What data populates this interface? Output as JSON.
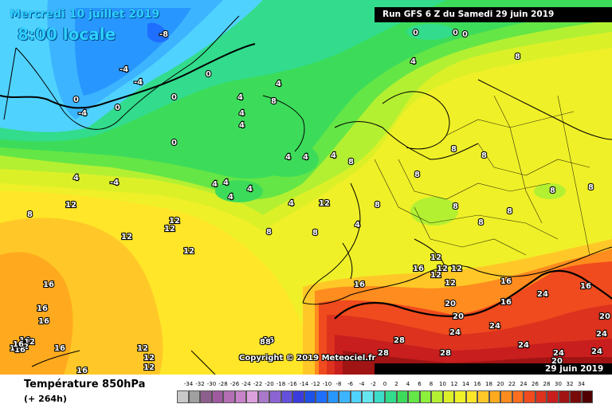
{
  "header": {
    "valid_line1": "Mercredi 10 juillet 2019",
    "valid_line2": "8:00 locale",
    "run": "Run GFS 6 Z du Samedi 29 juin 2019",
    "run_date": "29 juin 2019"
  },
  "copyright": "Copyright © 2019 Meteociel.fr",
  "footer": {
    "parameter": "Température 850hPa",
    "lead_time": "(+ 264h)"
  },
  "legend": {
    "labels": [
      "-34",
      "-32",
      "-30",
      "-28",
      "-26",
      "-24",
      "-22",
      "-20",
      "-18",
      "-16",
      "-14",
      "-12",
      "-10",
      "-8",
      "-6",
      "-4",
      "-2",
      "0",
      "2",
      "4",
      "6",
      "8",
      "10",
      "12",
      "14",
      "16",
      "18",
      "20",
      "22",
      "24",
      "26",
      "28",
      "30",
      "32",
      "34"
    ],
    "colors": [
      "#c8c8c8",
      "#a0a0a0",
      "#8c5f8c",
      "#a05aa0",
      "#b46eb4",
      "#c882c8",
      "#dca0dc",
      "#aa78c8",
      "#8c64d2",
      "#6450dc",
      "#3c3cdc",
      "#1e50e6",
      "#1e6eff",
      "#2896ff",
      "#3cb4ff",
      "#50d2ff",
      "#64e6f0",
      "#3cdcc8",
      "#32dc8c",
      "#3cdc5a",
      "#64e646",
      "#8cf03c",
      "#b4f032",
      "#dcf028",
      "#f0f028",
      "#ffe628",
      "#ffc828",
      "#ffaa1e",
      "#ff8c1e",
      "#ff6e1e",
      "#f04b1e",
      "#dc321e",
      "#c81e1e",
      "#a01414",
      "#780a0a",
      "#500000"
    ]
  },
  "map_labels": [
    {
      "v": "-8"
    },
    {
      "v": "-4"
    },
    {
      "v": "-4"
    },
    {
      "v": "0"
    },
    {
      "v": "0"
    },
    {
      "v": "0"
    },
    {
      "v": "-4"
    },
    {
      "v": "0"
    },
    {
      "v": "0"
    },
    {
      "v": "0"
    },
    {
      "v": "0"
    },
    {
      "v": "0"
    },
    {
      "v": "4"
    },
    {
      "v": "8"
    },
    {
      "v": "4"
    },
    {
      "v": "4"
    },
    {
      "v": "8"
    },
    {
      "v": "4"
    },
    {
      "v": "4"
    },
    {
      "v": "4"
    },
    {
      "v": "4"
    },
    {
      "v": "4"
    },
    {
      "v": "-4"
    },
    {
      "v": "4"
    },
    {
      "v": "4"
    },
    {
      "v": "4"
    },
    {
      "v": "4"
    },
    {
      "v": "4"
    },
    {
      "v": "4"
    },
    {
      "v": "8"
    },
    {
      "v": "8"
    },
    {
      "v": "8"
    },
    {
      "v": "4"
    },
    {
      "v": "8"
    },
    {
      "v": "8"
    },
    {
      "v": "8"
    },
    {
      "v": "8"
    },
    {
      "v": "8"
    },
    {
      "v": "8"
    },
    {
      "v": "8"
    },
    {
      "v": "8"
    },
    {
      "v": "8"
    },
    {
      "v": "12"
    },
    {
      "v": "12"
    },
    {
      "v": "12"
    },
    {
      "v": "12"
    },
    {
      "v": "12"
    },
    {
      "v": "8"
    },
    {
      "v": "12"
    },
    {
      "v": "16"
    },
    {
      "v": "16"
    },
    {
      "v": "16"
    },
    {
      "v": "16"
    },
    {
      "v": "16"
    },
    {
      "v": "16"
    },
    {
      "v": "12"
    },
    {
      "v": "12"
    },
    {
      "v": "12"
    },
    {
      "v": "16"
    },
    {
      "v": "16"
    },
    {
      "v": "16"
    },
    {
      "v": "12"
    },
    {
      "v": "12"
    },
    {
      "v": "16"
    },
    {
      "v": "16"
    },
    {
      "v": "20"
    },
    {
      "v": "16"
    },
    {
      "v": "20"
    },
    {
      "v": "24"
    },
    {
      "v": "24"
    },
    {
      "v": "24"
    },
    {
      "v": "20"
    },
    {
      "v": "24"
    },
    {
      "v": "28"
    },
    {
      "v": "28"
    },
    {
      "v": "28"
    },
    {
      "v": "24"
    },
    {
      "v": "24"
    },
    {
      "v": "20"
    },
    {
      "v": "24"
    },
    {
      "v": "28"
    },
    {
      "v": "12"
    },
    {
      "v": "12"
    },
    {
      "v": "12"
    },
    {
      "v": "12"
    },
    {
      "v": "12"
    },
    {
      "v": "16"
    },
    {
      "v": "16"
    },
    {
      "v": "16"
    },
    {
      "v": "88"
    }
  ]
}
